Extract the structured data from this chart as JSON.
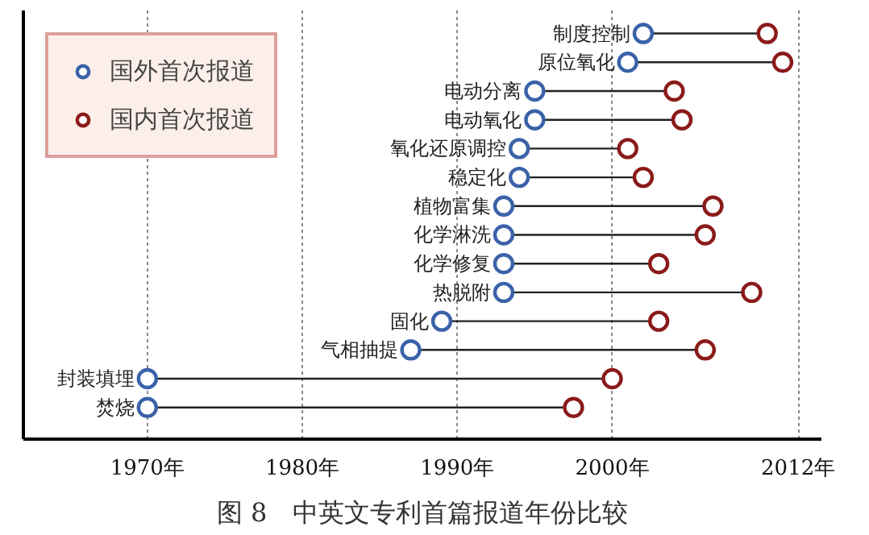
{
  "chart_data": {
    "type": "scatter",
    "orientation": "horizontal",
    "title": "图 8　中英文专利首篇报道年份比较",
    "categories": [
      "制度控制",
      "原位氧化",
      "电动分离",
      "电动氧化",
      "氧化还原调控",
      "稳定化",
      "植物富集",
      "化学淋洗",
      "化学修复",
      "热脱附",
      "固化",
      "气相抽提",
      "封装填埋",
      "焚烧"
    ],
    "series": [
      {
        "name": "国外首次报道",
        "color": "#3a62a8",
        "values": [
          2002,
          2001,
          1995,
          1995,
          1994,
          1994,
          1993,
          1993,
          1993,
          1993,
          1989,
          1987,
          1970,
          1970
        ]
      },
      {
        "name": "国内首次报道",
        "color": "#8b1a1a",
        "values": [
          2010,
          2011,
          2004,
          2004.5,
          2001,
          2002,
          2006.5,
          2006,
          2003,
          2009,
          2003,
          2006,
          2000,
          1997.5
        ]
      }
    ],
    "xlim": [
      1962,
      2013.5
    ],
    "xticks": [
      {
        "value": 1970,
        "label": "1970年"
      },
      {
        "value": 1980,
        "label": "1980年"
      },
      {
        "value": 1990,
        "label": "1990年"
      },
      {
        "value": 2000,
        "label": "2000年"
      },
      {
        "value": 2012,
        "label": "2012年"
      }
    ],
    "tick_labels": "x",
    "grid": "x",
    "legend": "top left",
    "marker": "circle"
  }
}
